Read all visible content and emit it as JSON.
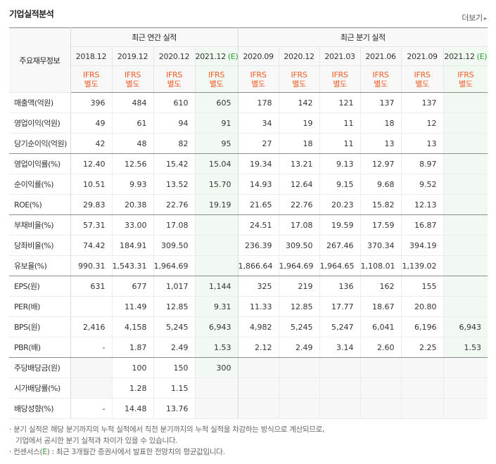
{
  "header": {
    "title": "기업실적분석",
    "more_label": "더보기",
    "more_arrow": "▸"
  },
  "table": {
    "label_header": "주요재무정보",
    "group_annual": "최근 연간 실적",
    "group_quarter": "최근 분기 실적",
    "periods": [
      "2018.12",
      "2019.12",
      "2020.12",
      "2021.12",
      "2020.09",
      "2020.12",
      "2021.03",
      "2021.06",
      "2021.09",
      "2021.12"
    ],
    "estimate_mark": "(E)",
    "ifrs_line1": "IFRS",
    "ifrs_line2": "별도",
    "rows": [
      {
        "label": "매출액(억원)",
        "values": [
          "396",
          "484",
          "610",
          "605",
          "178",
          "142",
          "121",
          "137",
          "137",
          ""
        ]
      },
      {
        "label": "영업이익(억원)",
        "values": [
          "49",
          "61",
          "94",
          "91",
          "34",
          "19",
          "11",
          "18",
          "12",
          ""
        ]
      },
      {
        "label": "당기순이익(억원)",
        "values": [
          "42",
          "48",
          "82",
          "95",
          "27",
          "18",
          "11",
          "13",
          "13",
          ""
        ]
      },
      {
        "label": "영업이익률(%)",
        "values": [
          "12.40",
          "12.56",
          "15.42",
          "15.04",
          "19.34",
          "13.21",
          "9.13",
          "12.97",
          "8.97",
          ""
        ]
      },
      {
        "label": "순이익률(%)",
        "values": [
          "10.51",
          "9.93",
          "13.52",
          "15.70",
          "14.93",
          "12.64",
          "9.15",
          "9.68",
          "9.52",
          ""
        ]
      },
      {
        "label": "ROE(%)",
        "values": [
          "29.83",
          "20.38",
          "22.76",
          "19.19",
          "21.65",
          "22.76",
          "20.23",
          "15.82",
          "12.13",
          ""
        ]
      },
      {
        "label": "부채비율(%)",
        "values": [
          "57.31",
          "33.00",
          "17.08",
          "",
          "24.51",
          "17.08",
          "19.59",
          "17.59",
          "16.87",
          ""
        ]
      },
      {
        "label": "당좌비율(%)",
        "values": [
          "74.42",
          "184.91",
          "309.50",
          "",
          "236.39",
          "309.50",
          "267.46",
          "370.34",
          "394.19",
          ""
        ]
      },
      {
        "label": "유보율(%)",
        "values": [
          "990.31",
          "1,543.31",
          "1,964.69",
          "",
          "1,866.64",
          "1,964.69",
          "1,964.65",
          "1,108.01",
          "1,139.02",
          ""
        ]
      },
      {
        "label": "EPS(원)",
        "values": [
          "631",
          "677",
          "1,017",
          "1,144",
          "325",
          "219",
          "136",
          "162",
          "155",
          ""
        ]
      },
      {
        "label": "PER(배)",
        "values": [
          "",
          "11.49",
          "12.85",
          "9.31",
          "11.33",
          "12.85",
          "17.77",
          "18.67",
          "20.80",
          ""
        ]
      },
      {
        "label": "BPS(원)",
        "values": [
          "2,416",
          "4,158",
          "5,245",
          "6,943",
          "4,982",
          "5,245",
          "5,247",
          "6,041",
          "6,196",
          "6,943"
        ]
      },
      {
        "label": "PBR(배)",
        "values": [
          "-",
          "1.87",
          "2.49",
          "1.53",
          "2.12",
          "2.49",
          "3.14",
          "2.60",
          "2.25",
          "1.53"
        ]
      },
      {
        "label": "주당배당금(원)",
        "values": [
          "",
          "100",
          "150",
          "300",
          "",
          "",
          "",
          "",
          "",
          ""
        ]
      },
      {
        "label": "시가배당률(%)",
        "values": [
          "",
          "1.28",
          "1.15",
          "",
          "",
          "",
          "",
          "",
          "",
          ""
        ]
      },
      {
        "label": "배당성향(%)",
        "values": [
          "-",
          "14.48",
          "13.76",
          "",
          "",
          "",
          "",
          "",
          "",
          ""
        ]
      }
    ]
  },
  "notes": {
    "line1": "· 분기 실적은 해당 분기까지의 누적 실적에서 직전 분기까지의 누적 실적을 차감하는 방식으로 계산되므로,",
    "line2": "기업에서 공시한 분기 실적과 차이가 있을 수 있습니다.",
    "line3_pre": "· 컨센서스(",
    "line3_mark": "E",
    "line3_post": ") : 최근 3개월간 증권사에서 발표한 전망치의 평균값입니다."
  },
  "colors": {
    "ifrs": "#f15a24",
    "estimate": "#2d9b2d",
    "estimate_bg": "#f2f9f2"
  }
}
